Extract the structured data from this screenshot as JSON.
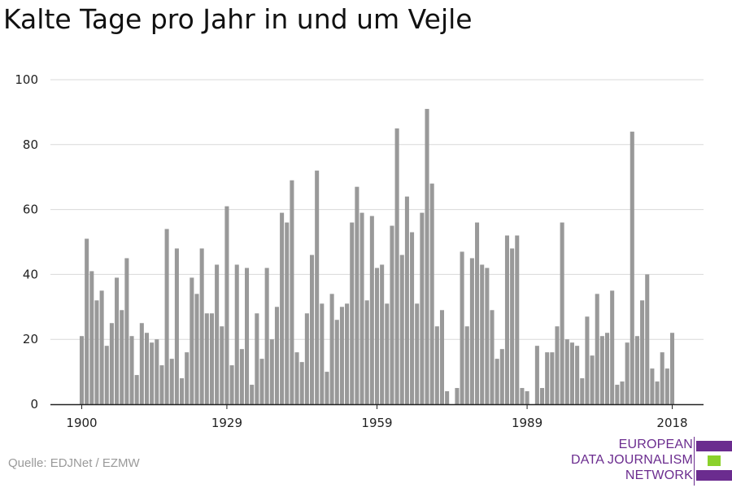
{
  "title": "Kalte Tage pro Jahr in und um Vejle",
  "source": "Quelle: EDJNet / EZMW",
  "logo": {
    "lines": [
      "EUROPEAN",
      "DATA JOURNALISM",
      "NETWORK"
    ],
    "colors": [
      "#6b2c8f",
      "#8bd12b",
      "#6b2c8f"
    ]
  },
  "colors": {
    "bar": "#999999",
    "grid": "#d9d9d9",
    "axis": "#222222",
    "tick_text": "#222222"
  },
  "chart_data": {
    "type": "bar",
    "title": "Kalte Tage pro Jahr in und um Vejle",
    "xlabel": "",
    "ylabel": "",
    "xlim": [
      1900,
      2018
    ],
    "ylim": [
      0,
      100
    ],
    "x_ticks": [
      1900,
      1929,
      1959,
      1989,
      2018
    ],
    "y_ticks": [
      0,
      20,
      40,
      60,
      80,
      100
    ],
    "grid": true,
    "start_year": 1900,
    "values": [
      21,
      51,
      41,
      32,
      35,
      18,
      25,
      39,
      29,
      45,
      21,
      9,
      25,
      22,
      19,
      20,
      12,
      54,
      14,
      48,
      8,
      16,
      39,
      34,
      48,
      28,
      28,
      43,
      24,
      61,
      12,
      43,
      17,
      42,
      6,
      28,
      14,
      42,
      20,
      30,
      59,
      56,
      69,
      16,
      13,
      28,
      46,
      72,
      31,
      10,
      34,
      26,
      30,
      31,
      56,
      67,
      59,
      32,
      58,
      42,
      43,
      31,
      55,
      85,
      46,
      64,
      53,
      31,
      59,
      91,
      68,
      24,
      29,
      4,
      0,
      5,
      47,
      24,
      45,
      56,
      43,
      42,
      29,
      14,
      17,
      52,
      48,
      52,
      5,
      4,
      0,
      18,
      5,
      16,
      16,
      24,
      56,
      20,
      19,
      18,
      8,
      27,
      15,
      34,
      21,
      22,
      35,
      6,
      7,
      19,
      84,
      21,
      32,
      40,
      11,
      7,
      16,
      11,
      22
    ]
  }
}
